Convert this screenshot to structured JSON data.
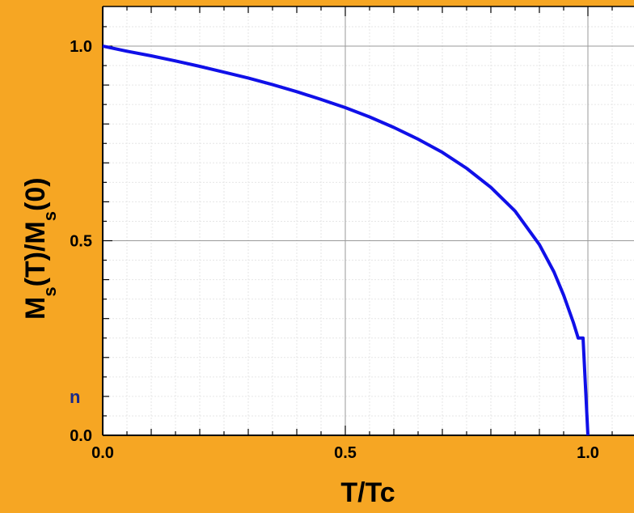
{
  "chart_data": {
    "type": "line",
    "xlabel": "T/Tc",
    "ylabel": {
      "M": "M",
      "s": "s",
      "open1": "(T)/",
      "open2": "(0)"
    },
    "xlim": [
      0.0,
      1.1
    ],
    "ylim": [
      0.0,
      1.05
    ],
    "x_ticks": [
      "0.0",
      "0.5",
      "1.0"
    ],
    "y_ticks": [
      "0.0",
      "0.5",
      "1.0"
    ],
    "grid": true,
    "line_color": "#1010e8",
    "series": [
      {
        "x": [
          0.0,
          0.05,
          0.1,
          0.15,
          0.2,
          0.25,
          0.3,
          0.35,
          0.4,
          0.45,
          0.5,
          0.55,
          0.6,
          0.65,
          0.7,
          0.75,
          0.8,
          0.85,
          0.9,
          0.93,
          0.95,
          0.97,
          0.98,
          0.99,
          1.0
        ],
        "y": [
          1.0,
          0.987,
          0.975,
          0.962,
          0.948,
          0.933,
          0.918,
          0.901,
          0.883,
          0.863,
          0.842,
          0.818,
          0.791,
          0.761,
          0.727,
          0.686,
          0.637,
          0.576,
          0.49,
          0.42,
          0.36,
          0.29,
          0.25,
          0.25,
          0.0
        ]
      }
    ]
  },
  "edge_text": "n",
  "colors": {
    "background": "#f6a623",
    "plot_background": "#ffffff",
    "curve": "#1010e8"
  }
}
